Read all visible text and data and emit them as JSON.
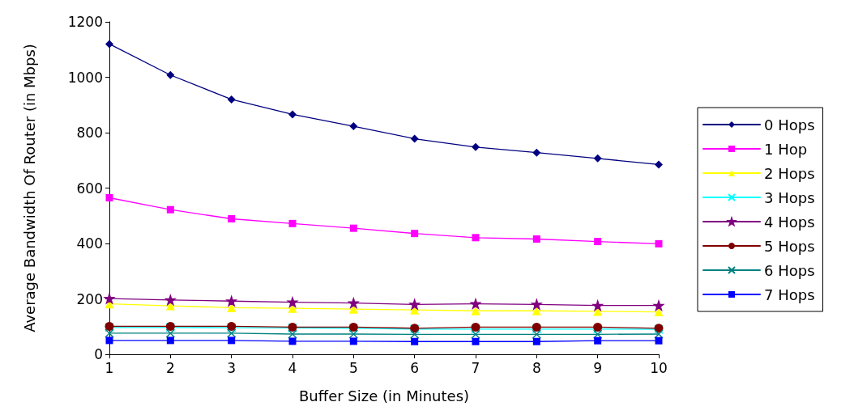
{
  "chart_data": {
    "type": "line",
    "xlabel": "Buffer Size (in Minutes)",
    "ylabel": "Average Bandwidth Of Router (in Mbps)",
    "x": [
      1,
      2,
      3,
      4,
      5,
      6,
      7,
      8,
      9,
      10
    ],
    "xlim": [
      1,
      10
    ],
    "xticks": [
      1,
      2,
      3,
      4,
      5,
      6,
      7,
      8,
      9,
      10
    ],
    "ylim": [
      0,
      1200
    ],
    "yticks": [
      0,
      200,
      400,
      600,
      800,
      1000,
      1200
    ],
    "grid": false,
    "legend": "right",
    "line_style": "solid",
    "series": [
      {
        "name": "0 Hops",
        "color": "#000080",
        "marker": "diamond",
        "values": [
          1120,
          1008,
          920,
          866,
          823,
          778,
          748,
          728,
          707,
          685
        ]
      },
      {
        "name": "1 Hop",
        "color": "#ff00ff",
        "marker": "square",
        "values": [
          565,
          522,
          489,
          472,
          455,
          436,
          421,
          416,
          407,
          399
        ]
      },
      {
        "name": "2 Hops",
        "color": "#ffff00",
        "marker": "triangle",
        "values": [
          182,
          175,
          168,
          166,
          163,
          160,
          157,
          157,
          155,
          153
        ]
      },
      {
        "name": "3 Hops",
        "color": "#00ffff",
        "marker": "cross",
        "values": [
          97,
          97,
          96,
          95,
          94,
          91,
          91,
          91,
          91,
          90
        ]
      },
      {
        "name": "4 Hops",
        "color": "#800080",
        "marker": "star",
        "values": [
          201,
          196,
          192,
          188,
          185,
          180,
          182,
          180,
          176,
          176
        ]
      },
      {
        "name": "5 Hops",
        "color": "#800000",
        "marker": "circle",
        "values": [
          101,
          101,
          101,
          98,
          98,
          94,
          98,
          98,
          98,
          94
        ]
      },
      {
        "name": "6 Hops",
        "color": "#008080",
        "marker": "cross",
        "values": [
          76,
          76,
          76,
          73,
          73,
          72,
          72,
          72,
          72,
          73
        ]
      },
      {
        "name": "7 Hops",
        "color": "#0000ff",
        "marker": "square",
        "values": [
          50,
          50,
          50,
          47,
          47,
          46,
          46,
          46,
          49,
          49
        ]
      }
    ]
  }
}
